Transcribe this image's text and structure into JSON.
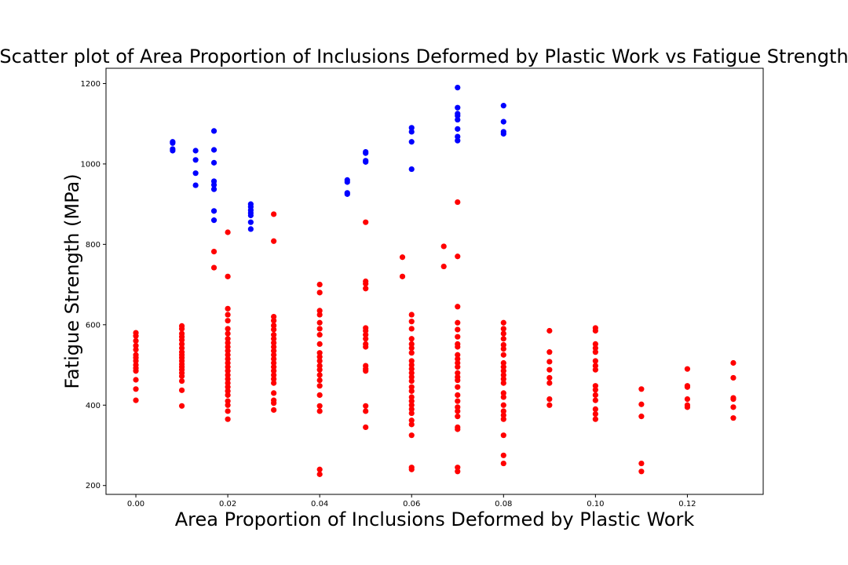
{
  "chart_data": {
    "type": "scatter",
    "title": "Scatter plot of Area Proportion of Inclusions Deformed by Plastic Work vs Fatigue Strength",
    "xlabel": "Area Proportion of Inclusions Deformed by Plastic Work",
    "ylabel": "Fatigue Strength (MPa)",
    "xlim": [
      -0.0065,
      0.1365
    ],
    "ylim": [
      178,
      1238
    ],
    "x_ticks": [
      0.0,
      0.02,
      0.04,
      0.06,
      0.08,
      0.1,
      0.12
    ],
    "x_tick_labels": [
      "0.00",
      "0.02",
      "0.04",
      "0.06",
      "0.08",
      "0.10",
      "0.12"
    ],
    "y_ticks": [
      200,
      400,
      600,
      800,
      1000,
      1200
    ],
    "y_tick_labels": [
      "200",
      "400",
      "600",
      "800",
      "1000",
      "1200"
    ],
    "grid": false,
    "legend": "none",
    "series": [
      {
        "color": "#0000ff",
        "points": [
          [
            0.008,
            1055
          ],
          [
            0.008,
            1052
          ],
          [
            0.008,
            1037
          ],
          [
            0.008,
            1033
          ],
          [
            0.013,
            1033
          ],
          [
            0.013,
            1010
          ],
          [
            0.013,
            977
          ],
          [
            0.013,
            947
          ],
          [
            0.017,
            1082
          ],
          [
            0.017,
            1035
          ],
          [
            0.017,
            1003
          ],
          [
            0.017,
            957
          ],
          [
            0.017,
            948
          ],
          [
            0.017,
            937
          ],
          [
            0.017,
            883
          ],
          [
            0.017,
            860
          ],
          [
            0.025,
            900
          ],
          [
            0.025,
            893
          ],
          [
            0.025,
            885
          ],
          [
            0.025,
            878
          ],
          [
            0.025,
            872
          ],
          [
            0.025,
            855
          ],
          [
            0.025,
            838
          ],
          [
            0.046,
            960
          ],
          [
            0.046,
            955
          ],
          [
            0.046,
            928
          ],
          [
            0.046,
            925
          ],
          [
            0.05,
            1030
          ],
          [
            0.05,
            1027
          ],
          [
            0.05,
            1008
          ],
          [
            0.05,
            1005
          ],
          [
            0.06,
            1090
          ],
          [
            0.06,
            1080
          ],
          [
            0.06,
            1055
          ],
          [
            0.06,
            987
          ],
          [
            0.07,
            1190
          ],
          [
            0.07,
            1140
          ],
          [
            0.07,
            1125
          ],
          [
            0.07,
            1120
          ],
          [
            0.07,
            1110
          ],
          [
            0.07,
            1087
          ],
          [
            0.07,
            1068
          ],
          [
            0.07,
            1058
          ],
          [
            0.08,
            1145
          ],
          [
            0.08,
            1105
          ],
          [
            0.08,
            1080
          ],
          [
            0.08,
            1075
          ]
        ]
      },
      {
        "color": "#ff0000",
        "points": [
          [
            0.0,
            580
          ],
          [
            0.0,
            572
          ],
          [
            0.0,
            560
          ],
          [
            0.0,
            548
          ],
          [
            0.0,
            538
          ],
          [
            0.0,
            525
          ],
          [
            0.0,
            518
          ],
          [
            0.0,
            510
          ],
          [
            0.0,
            500
          ],
          [
            0.0,
            492
          ],
          [
            0.0,
            485
          ],
          [
            0.0,
            463
          ],
          [
            0.0,
            440
          ],
          [
            0.0,
            412
          ],
          [
            0.01,
            597
          ],
          [
            0.01,
            590
          ],
          [
            0.01,
            578
          ],
          [
            0.01,
            570
          ],
          [
            0.01,
            562
          ],
          [
            0.01,
            552
          ],
          [
            0.01,
            542
          ],
          [
            0.01,
            532
          ],
          [
            0.01,
            525
          ],
          [
            0.01,
            518
          ],
          [
            0.01,
            510
          ],
          [
            0.01,
            502
          ],
          [
            0.01,
            495
          ],
          [
            0.01,
            488
          ],
          [
            0.01,
            480
          ],
          [
            0.01,
            472
          ],
          [
            0.01,
            460
          ],
          [
            0.01,
            437
          ],
          [
            0.01,
            398
          ],
          [
            0.017,
            782
          ],
          [
            0.017,
            742
          ],
          [
            0.02,
            830
          ],
          [
            0.02,
            720
          ],
          [
            0.02,
            640
          ],
          [
            0.02,
            625
          ],
          [
            0.02,
            610
          ],
          [
            0.02,
            590
          ],
          [
            0.02,
            578
          ],
          [
            0.02,
            565
          ],
          [
            0.02,
            555
          ],
          [
            0.02,
            545
          ],
          [
            0.02,
            535
          ],
          [
            0.02,
            525
          ],
          [
            0.02,
            515
          ],
          [
            0.02,
            505
          ],
          [
            0.02,
            495
          ],
          [
            0.02,
            485
          ],
          [
            0.02,
            475
          ],
          [
            0.02,
            465
          ],
          [
            0.02,
            455
          ],
          [
            0.02,
            445
          ],
          [
            0.02,
            435
          ],
          [
            0.02,
            425
          ],
          [
            0.02,
            410
          ],
          [
            0.02,
            400
          ],
          [
            0.02,
            385
          ],
          [
            0.02,
            365
          ],
          [
            0.03,
            875
          ],
          [
            0.03,
            808
          ],
          [
            0.03,
            620
          ],
          [
            0.03,
            610
          ],
          [
            0.03,
            598
          ],
          [
            0.03,
            588
          ],
          [
            0.03,
            575
          ],
          [
            0.03,
            565
          ],
          [
            0.03,
            555
          ],
          [
            0.03,
            545
          ],
          [
            0.03,
            535
          ],
          [
            0.03,
            525
          ],
          [
            0.03,
            515
          ],
          [
            0.03,
            505
          ],
          [
            0.03,
            495
          ],
          [
            0.03,
            485
          ],
          [
            0.03,
            475
          ],
          [
            0.03,
            465
          ],
          [
            0.03,
            455
          ],
          [
            0.03,
            430
          ],
          [
            0.03,
            412
          ],
          [
            0.03,
            405
          ],
          [
            0.03,
            388
          ],
          [
            0.04,
            700
          ],
          [
            0.04,
            680
          ],
          [
            0.04,
            635
          ],
          [
            0.04,
            625
          ],
          [
            0.04,
            605
          ],
          [
            0.04,
            590
          ],
          [
            0.04,
            575
          ],
          [
            0.04,
            552
          ],
          [
            0.04,
            530
          ],
          [
            0.04,
            520
          ],
          [
            0.04,
            510
          ],
          [
            0.04,
            498
          ],
          [
            0.04,
            488
          ],
          [
            0.04,
            475
          ],
          [
            0.04,
            462
          ],
          [
            0.04,
            448
          ],
          [
            0.04,
            425
          ],
          [
            0.04,
            398
          ],
          [
            0.04,
            385
          ],
          [
            0.04,
            240
          ],
          [
            0.04,
            228
          ],
          [
            0.05,
            855
          ],
          [
            0.05,
            708
          ],
          [
            0.05,
            702
          ],
          [
            0.05,
            690
          ],
          [
            0.05,
            592
          ],
          [
            0.05,
            585
          ],
          [
            0.05,
            575
          ],
          [
            0.05,
            565
          ],
          [
            0.05,
            552
          ],
          [
            0.05,
            545
          ],
          [
            0.05,
            498
          ],
          [
            0.05,
            490
          ],
          [
            0.05,
            485
          ],
          [
            0.05,
            398
          ],
          [
            0.05,
            385
          ],
          [
            0.05,
            345
          ],
          [
            0.058,
            768
          ],
          [
            0.058,
            720
          ],
          [
            0.06,
            625
          ],
          [
            0.06,
            608
          ],
          [
            0.06,
            590
          ],
          [
            0.06,
            565
          ],
          [
            0.06,
            552
          ],
          [
            0.06,
            542
          ],
          [
            0.06,
            530
          ],
          [
            0.06,
            510
          ],
          [
            0.06,
            500
          ],
          [
            0.06,
            490
          ],
          [
            0.06,
            480
          ],
          [
            0.06,
            470
          ],
          [
            0.06,
            460
          ],
          [
            0.06,
            445
          ],
          [
            0.06,
            435
          ],
          [
            0.06,
            420
          ],
          [
            0.06,
            410
          ],
          [
            0.06,
            400
          ],
          [
            0.06,
            390
          ],
          [
            0.06,
            380
          ],
          [
            0.06,
            362
          ],
          [
            0.06,
            352
          ],
          [
            0.06,
            325
          ],
          [
            0.06,
            245
          ],
          [
            0.06,
            240
          ],
          [
            0.067,
            795
          ],
          [
            0.067,
            745
          ],
          [
            0.07,
            905
          ],
          [
            0.07,
            770
          ],
          [
            0.07,
            645
          ],
          [
            0.07,
            605
          ],
          [
            0.07,
            588
          ],
          [
            0.07,
            570
          ],
          [
            0.07,
            552
          ],
          [
            0.07,
            545
          ],
          [
            0.07,
            525
          ],
          [
            0.07,
            515
          ],
          [
            0.07,
            505
          ],
          [
            0.07,
            495
          ],
          [
            0.07,
            480
          ],
          [
            0.07,
            470
          ],
          [
            0.07,
            462
          ],
          [
            0.07,
            445
          ],
          [
            0.07,
            425
          ],
          [
            0.07,
            410
          ],
          [
            0.07,
            395
          ],
          [
            0.07,
            385
          ],
          [
            0.07,
            372
          ],
          [
            0.07,
            345
          ],
          [
            0.07,
            340
          ],
          [
            0.07,
            245
          ],
          [
            0.07,
            235
          ],
          [
            0.08,
            605
          ],
          [
            0.08,
            590
          ],
          [
            0.08,
            578
          ],
          [
            0.08,
            565
          ],
          [
            0.08,
            550
          ],
          [
            0.08,
            540
          ],
          [
            0.08,
            525
          ],
          [
            0.08,
            505
          ],
          [
            0.08,
            495
          ],
          [
            0.08,
            485
          ],
          [
            0.08,
            475
          ],
          [
            0.08,
            465
          ],
          [
            0.08,
            455
          ],
          [
            0.08,
            430
          ],
          [
            0.08,
            420
          ],
          [
            0.08,
            400
          ],
          [
            0.08,
            385
          ],
          [
            0.08,
            375
          ],
          [
            0.08,
            365
          ],
          [
            0.08,
            325
          ],
          [
            0.08,
            275
          ],
          [
            0.08,
            255
          ],
          [
            0.09,
            585
          ],
          [
            0.09,
            532
          ],
          [
            0.09,
            508
          ],
          [
            0.09,
            488
          ],
          [
            0.09,
            468
          ],
          [
            0.09,
            455
          ],
          [
            0.09,
            415
          ],
          [
            0.09,
            400
          ],
          [
            0.1,
            592
          ],
          [
            0.1,
            585
          ],
          [
            0.1,
            552
          ],
          [
            0.1,
            542
          ],
          [
            0.1,
            532
          ],
          [
            0.1,
            510
          ],
          [
            0.1,
            498
          ],
          [
            0.1,
            488
          ],
          [
            0.1,
            448
          ],
          [
            0.1,
            438
          ],
          [
            0.1,
            425
          ],
          [
            0.1,
            412
          ],
          [
            0.1,
            390
          ],
          [
            0.1,
            378
          ],
          [
            0.1,
            365
          ],
          [
            0.11,
            440
          ],
          [
            0.11,
            402
          ],
          [
            0.11,
            372
          ],
          [
            0.11,
            255
          ],
          [
            0.11,
            235
          ],
          [
            0.12,
            490
          ],
          [
            0.12,
            448
          ],
          [
            0.12,
            445
          ],
          [
            0.12,
            415
          ],
          [
            0.12,
            400
          ],
          [
            0.12,
            395
          ],
          [
            0.13,
            505
          ],
          [
            0.13,
            468
          ],
          [
            0.13,
            418
          ],
          [
            0.13,
            415
          ],
          [
            0.13,
            395
          ],
          [
            0.13,
            368
          ]
        ]
      }
    ]
  }
}
